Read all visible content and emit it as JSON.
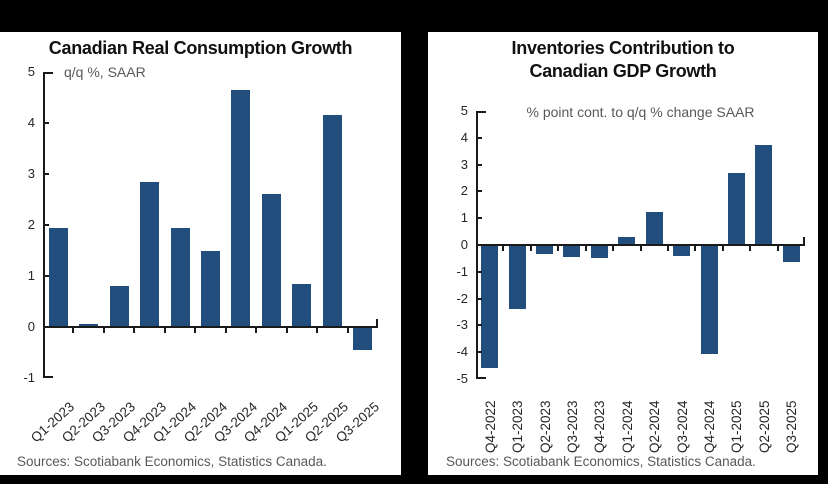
{
  "page": {
    "background": "#000000",
    "panel_background": "#ffffff"
  },
  "colors": {
    "bar": "#224E7E",
    "axis": "#1a1a1a",
    "tick_label": "#262626",
    "subtitle": "#595959",
    "source": "#595959",
    "title": "#111111"
  },
  "chart_data": [
    {
      "type": "bar",
      "title": "Canadian Real Consumption Growth",
      "title_lines": [
        "Canadian Real Consumption Growth"
      ],
      "subtitle": "q/q %, SAAR",
      "source": "Sources: Scotiabank Economics, Statistics Canada.",
      "categories": [
        "Q1-2023",
        "Q2-2023",
        "Q3-2023",
        "Q4-2023",
        "Q1-2024",
        "Q2-2024",
        "Q3-2024",
        "Q4-2024",
        "Q1-2025",
        "Q2-2025",
        "Q3-2025"
      ],
      "values": [
        1.95,
        0.05,
        0.8,
        2.85,
        1.95,
        1.5,
        4.65,
        2.6,
        0.85,
        4.15,
        -0.45
      ],
      "ylim": [
        -1,
        5
      ],
      "yticks": [
        5,
        4,
        3,
        2,
        1,
        0,
        -1
      ],
      "xlabel": "",
      "ylabel": "",
      "grid": false,
      "legend": "none",
      "x_label_rotation": 45,
      "bar_color": "#224E7E"
    },
    {
      "type": "bar",
      "title": "Inventories Contribution to Canadian GDP Growth",
      "title_lines": [
        "Inventories Contribution to",
        "Canadian GDP Growth"
      ],
      "subtitle": "% point cont. to q/q % change SAAR",
      "source": "Sources: Scotiabank Economics, Statistics Canada.",
      "categories": [
        "Q4-2022",
        "Q1-2023",
        "Q2-2023",
        "Q3-2023",
        "Q4-2023",
        "Q1-2024",
        "Q2-2024",
        "Q3-2024",
        "Q4-2024",
        "Q1-2025",
        "Q2-2025",
        "Q3-2025"
      ],
      "values": [
        -4.6,
        -2.4,
        -0.35,
        -0.45,
        -0.5,
        0.3,
        1.25,
        -0.4,
        -4.05,
        2.7,
        3.75,
        -0.65
      ],
      "ylim": [
        -5,
        5
      ],
      "yticks": [
        5,
        4,
        3,
        2,
        1,
        0,
        -1,
        -2,
        -3,
        -4,
        -5
      ],
      "xlabel": "",
      "ylabel": "",
      "grid": false,
      "legend": "none",
      "x_label_rotation": 90,
      "bar_color": "#224E7E"
    }
  ]
}
